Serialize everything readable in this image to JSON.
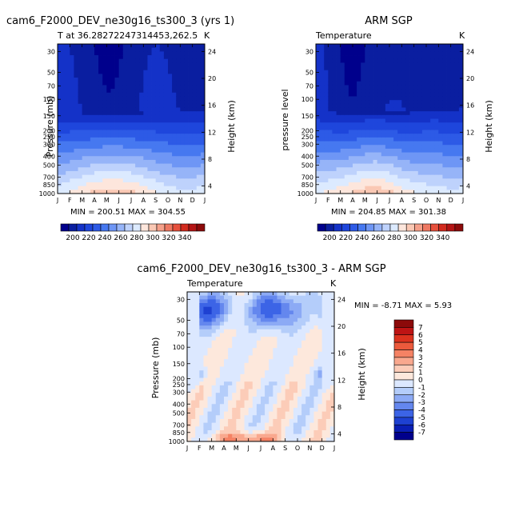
{
  "chart_data": [
    {
      "type": "heatmap",
      "title": "cam6_F2000_DEV_ne30g16_ts300_3 (yrs 1)",
      "subtitle_left": "T at 36.28272247314453,262.5",
      "subtitle_right": "K",
      "xlabel": "",
      "ylabel": "Pressure (mb)",
      "ylabel_right": "Height (km)",
      "months": [
        "J",
        "F",
        "M",
        "A",
        "M",
        "J",
        "J",
        "A",
        "S",
        "O",
        "N",
        "D",
        "J"
      ],
      "pressure_ticks": [
        "30",
        "50",
        "70",
        "100",
        "150",
        "200",
        "250",
        "300",
        "400",
        "500",
        "700",
        "850",
        "1000"
      ],
      "height_ticks": [
        "24",
        "20",
        "16",
        "12",
        "8",
        "4"
      ],
      "min_max_text": "MIN = 200.51  MAX = 304.55",
      "min": 200.51,
      "max": 304.55,
      "colorbar_labels": [
        "200",
        "220",
        "240",
        "260",
        "280",
        "300",
        "320",
        "340"
      ]
    },
    {
      "type": "heatmap",
      "title": "ARM SGP",
      "subtitle_left": "Temperature",
      "subtitle_right": "K",
      "xlabel": "",
      "ylabel": "pressure level",
      "ylabel_right": "Height (km)",
      "months": [
        "J",
        "F",
        "M",
        "A",
        "M",
        "J",
        "J",
        "A",
        "S",
        "O",
        "N",
        "D",
        "J"
      ],
      "pressure_ticks": [
        "30",
        "50",
        "70",
        "100",
        "150",
        "200",
        "250",
        "300",
        "400",
        "500",
        "700",
        "850",
        "1000"
      ],
      "height_ticks": [
        "24",
        "20",
        "16",
        "12",
        "8",
        "4"
      ],
      "min_max_text": "MIN = 204.85  MAX = 301.38",
      "min": 204.85,
      "max": 301.38,
      "colorbar_labels": [
        "200",
        "220",
        "240",
        "260",
        "280",
        "300",
        "320",
        "340"
      ]
    },
    {
      "type": "heatmap",
      "title": "cam6_F2000_DEV_ne30g16_ts300_3 - ARM SGP",
      "subtitle_left": "Temperature",
      "subtitle_right": "K",
      "xlabel": "",
      "ylabel": "Pressure (mb)",
      "ylabel_right": "Height (km)",
      "months": [
        "J",
        "F",
        "M",
        "A",
        "M",
        "J",
        "J",
        "A",
        "S",
        "O",
        "N",
        "D",
        "J"
      ],
      "pressure_ticks": [
        "30",
        "50",
        "70",
        "100",
        "150",
        "200",
        "250",
        "300",
        "400",
        "500",
        "700",
        "850",
        "1000"
      ],
      "height_ticks": [
        "24",
        "20",
        "16",
        "12",
        "8",
        "4"
      ],
      "min_max_text": "MIN =  -8.71  MAX =    5.93",
      "min": -8.71,
      "max": 5.93,
      "colorbar_labels": [
        "7",
        "6",
        "5",
        "4",
        "3",
        "2",
        "1",
        "0",
        "-1",
        "-2",
        "-3",
        "-4",
        "-5",
        "-6",
        "-7"
      ]
    }
  ],
  "colors": {
    "temp_scale": [
      "#00008c",
      "#0a1ea0",
      "#1432c8",
      "#1e46dc",
      "#2d5ae6",
      "#4678f0",
      "#6e96f5",
      "#96b4f8",
      "#bed2fc",
      "#dceaff",
      "#fde6dc",
      "#fac8b4",
      "#f5a08a",
      "#ee7862",
      "#e6503c",
      "#d22a1e",
      "#b41414",
      "#8c0a0a"
    ],
    "diff_scale": [
      "#8c0a0a",
      "#be1414",
      "#dc321e",
      "#ec5a3c",
      "#f58264",
      "#f9a88e",
      "#fcccb8",
      "#fde8dc",
      "#dce8ff",
      "#b4cdfa",
      "#8caaf5",
      "#6487ee",
      "#3c64e6",
      "#1e41d2",
      "#0a1eb4",
      "#00008c"
    ]
  }
}
